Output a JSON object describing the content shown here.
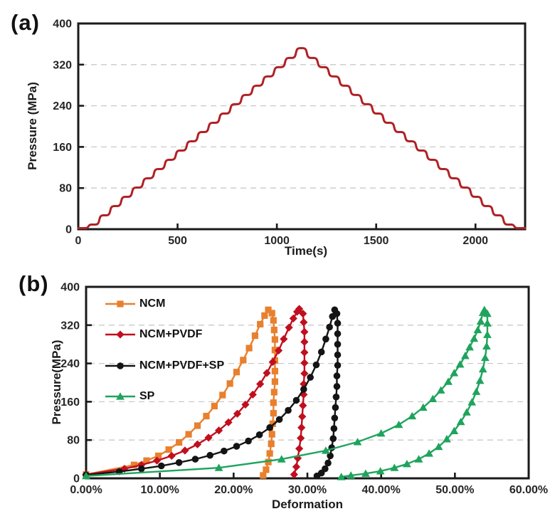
{
  "figure": {
    "background": "#ffffff",
    "panel_labels": [
      "(a)",
      "(b)"
    ],
    "frame_color": "#1a1a1a",
    "grid_color": "#c9c9c9",
    "tick_text_color": "#262626"
  },
  "chart_data": [
    {
      "id": "a",
      "type": "line",
      "title": "",
      "xlabel": "Time(s)",
      "ylabel": "Pressure (MPa)",
      "xlim": [
        0,
        2250
      ],
      "ylim": [
        0,
        400
      ],
      "x_ticks": [
        0,
        500,
        1000,
        1500,
        2000
      ],
      "y_ticks": [
        0,
        80,
        160,
        240,
        320,
        400
      ],
      "x_tick_format": "number",
      "grid": "horizontal-dashed",
      "legend": "none",
      "series": [
        {
          "name": "stepwise pressure profile",
          "color": "#b02125",
          "width": 3,
          "marker": "none",
          "description": "staircase loading 0 to 352 MPa then symmetric staircase unloading back to 0",
          "staircase": {
            "initial_hold_s": 45,
            "ramp_s": 12,
            "hold_s": 43,
            "end_s": 2250,
            "levels": [
              2,
              9,
              27,
              45,
              63,
              81,
              99,
              117,
              135,
              153,
              171,
              189,
              207,
              225,
              243,
              261,
              279,
              297,
              315,
              333,
              352
            ]
          }
        }
      ]
    },
    {
      "id": "b",
      "type": "line",
      "title": "",
      "xlabel": "Deformation",
      "ylabel": "Pressure(MPa)",
      "xlim": [
        0,
        60
      ],
      "ylim": [
        0,
        400
      ],
      "x_ticks": [
        0,
        10,
        20,
        30,
        40,
        50,
        60
      ],
      "y_ticks": [
        0,
        80,
        160,
        240,
        320,
        400
      ],
      "x_tick_format": "percent2",
      "grid": "horizontal-dashed",
      "legend": "top-left-inside",
      "series": [
        {
          "name": "NCM",
          "color": "#e8802e",
          "width": 2.4,
          "marker": "square",
          "loading": [
            [
              0,
              8
            ],
            [
              6.5,
              28
            ],
            [
              8.2,
              37
            ],
            [
              9.8,
              47
            ],
            [
              11.2,
              60
            ],
            [
              12.6,
              75
            ],
            [
              13.9,
              92
            ],
            [
              15.1,
              110
            ],
            [
              16.3,
              130
            ],
            [
              17.4,
              151
            ],
            [
              18.5,
              174
            ],
            [
              19.5,
              198
            ],
            [
              20.4,
              222
            ],
            [
              21.3,
              247
            ],
            [
              22.1,
              272
            ],
            [
              22.9,
              298
            ],
            [
              23.6,
              322
            ],
            [
              24.2,
              340
            ],
            [
              24.7,
              352
            ]
          ],
          "unloading": [
            [
              25.2,
              345
            ],
            [
              25.4,
              330
            ],
            [
              25.5,
              310
            ],
            [
              25.6,
              290
            ],
            [
              25.6,
              268
            ],
            [
              25.6,
              246
            ],
            [
              25.6,
              224
            ],
            [
              25.6,
              202
            ],
            [
              25.5,
              180
            ],
            [
              25.4,
              158
            ],
            [
              25.4,
              136
            ],
            [
              25.3,
              114
            ],
            [
              25.2,
              92
            ],
            [
              25.1,
              72
            ],
            [
              24.9,
              52
            ],
            [
              24.7,
              34
            ],
            [
              24.4,
              18
            ],
            [
              24.0,
              6
            ]
          ]
        },
        {
          "name": "NCM+PVDF",
          "color": "#c00f1e",
          "width": 2.4,
          "marker": "diamond",
          "loading": [
            [
              0,
              8
            ],
            [
              5.2,
              20
            ],
            [
              7.5,
              28
            ],
            [
              9.6,
              37
            ],
            [
              11.6,
              47
            ],
            [
              13.4,
              58
            ],
            [
              15.1,
              71
            ],
            [
              16.6,
              85
            ],
            [
              18.0,
              100
            ],
            [
              19.3,
              117
            ],
            [
              20.5,
              135
            ],
            [
              21.6,
              154
            ],
            [
              22.6,
              175
            ],
            [
              23.6,
              197
            ],
            [
              24.5,
              220
            ],
            [
              25.3,
              243
            ],
            [
              26.1,
              267
            ],
            [
              26.8,
              291
            ],
            [
              27.5,
              315
            ],
            [
              28.1,
              334
            ],
            [
              28.6,
              348
            ],
            [
              28.9,
              354
            ]
          ],
          "unloading": [
            [
              29.4,
              344
            ],
            [
              29.5,
              326
            ],
            [
              29.6,
              306
            ],
            [
              29.6,
              285
            ],
            [
              29.6,
              263
            ],
            [
              29.6,
              241
            ],
            [
              29.6,
              219
            ],
            [
              29.5,
              197
            ],
            [
              29.5,
              175
            ],
            [
              29.4,
              152
            ],
            [
              29.3,
              129
            ],
            [
              29.2,
              106
            ],
            [
              29.1,
              84
            ],
            [
              28.9,
              62
            ],
            [
              28.7,
              42
            ],
            [
              28.5,
              24
            ],
            [
              28.2,
              8
            ]
          ]
        },
        {
          "name": "NCM+PVDF+SP",
          "color": "#141414",
          "width": 2.4,
          "marker": "circle",
          "loading": [
            [
              0,
              7
            ],
            [
              4.5,
              14
            ],
            [
              7.5,
              20
            ],
            [
              10.2,
              26
            ],
            [
              12.6,
              33
            ],
            [
              14.8,
              40
            ],
            [
              16.8,
              48
            ],
            [
              18.7,
              57
            ],
            [
              20.4,
              67
            ],
            [
              22.0,
              78
            ],
            [
              23.5,
              91
            ],
            [
              24.9,
              106
            ],
            [
              26.2,
              123
            ],
            [
              27.4,
              142
            ],
            [
              28.5,
              163
            ],
            [
              29.5,
              186
            ],
            [
              30.4,
              211
            ],
            [
              31.2,
              237
            ],
            [
              31.9,
              264
            ],
            [
              32.5,
              291
            ],
            [
              33.0,
              316
            ],
            [
              33.4,
              338
            ],
            [
              33.7,
              352
            ]
          ],
          "unloading": [
            [
              34.0,
              344
            ],
            [
              34.1,
              324
            ],
            [
              34.1,
              302
            ],
            [
              34.1,
              280
            ],
            [
              34.1,
              258
            ],
            [
              34.1,
              236
            ],
            [
              34.0,
              214
            ],
            [
              34.0,
              192
            ],
            [
              33.9,
              170
            ],
            [
              33.8,
              148
            ],
            [
              33.7,
              126
            ],
            [
              33.6,
              104
            ],
            [
              33.5,
              83
            ],
            [
              33.3,
              64
            ],
            [
              33.1,
              47
            ],
            [
              32.8,
              32
            ],
            [
              32.4,
              20
            ],
            [
              31.9,
              11
            ],
            [
              31.3,
              5
            ]
          ]
        },
        {
          "name": "SP",
          "color": "#1ea45c",
          "width": 2.4,
          "marker": "triangle",
          "loading": [
            [
              0,
              5
            ],
            [
              18.0,
              22
            ],
            [
              26.5,
              40
            ],
            [
              32.5,
              58
            ],
            [
              36.8,
              76
            ],
            [
              40.0,
              94
            ],
            [
              42.4,
              112
            ],
            [
              44.2,
              130
            ],
            [
              45.7,
              148
            ],
            [
              47.0,
              166
            ],
            [
              48.1,
              184
            ],
            [
              49.1,
              202
            ],
            [
              49.9,
              220
            ],
            [
              50.7,
              238
            ],
            [
              51.4,
              256
            ],
            [
              52.0,
              274
            ],
            [
              52.6,
              292
            ],
            [
              53.1,
              310
            ],
            [
              53.5,
              328
            ],
            [
              53.8,
              346
            ],
            [
              54.0,
              352
            ]
          ],
          "unloading": [
            [
              54.4,
              344
            ],
            [
              54.4,
              324
            ],
            [
              54.4,
              300
            ],
            [
              54.3,
              276
            ],
            [
              54.1,
              252
            ],
            [
              53.8,
              228
            ],
            [
              53.4,
              204
            ],
            [
              52.9,
              181
            ],
            [
              52.3,
              159
            ],
            [
              51.6,
              138
            ],
            [
              50.8,
              118
            ],
            [
              49.9,
              99
            ],
            [
              48.9,
              82
            ],
            [
              47.8,
              66
            ],
            [
              46.5,
              52
            ],
            [
              45.1,
              40
            ],
            [
              43.5,
              30
            ],
            [
              41.8,
              22
            ],
            [
              39.9,
              15
            ],
            [
              37.9,
              10
            ],
            [
              35.9,
              6
            ],
            [
              34.6,
              3
            ]
          ]
        }
      ]
    }
  ]
}
